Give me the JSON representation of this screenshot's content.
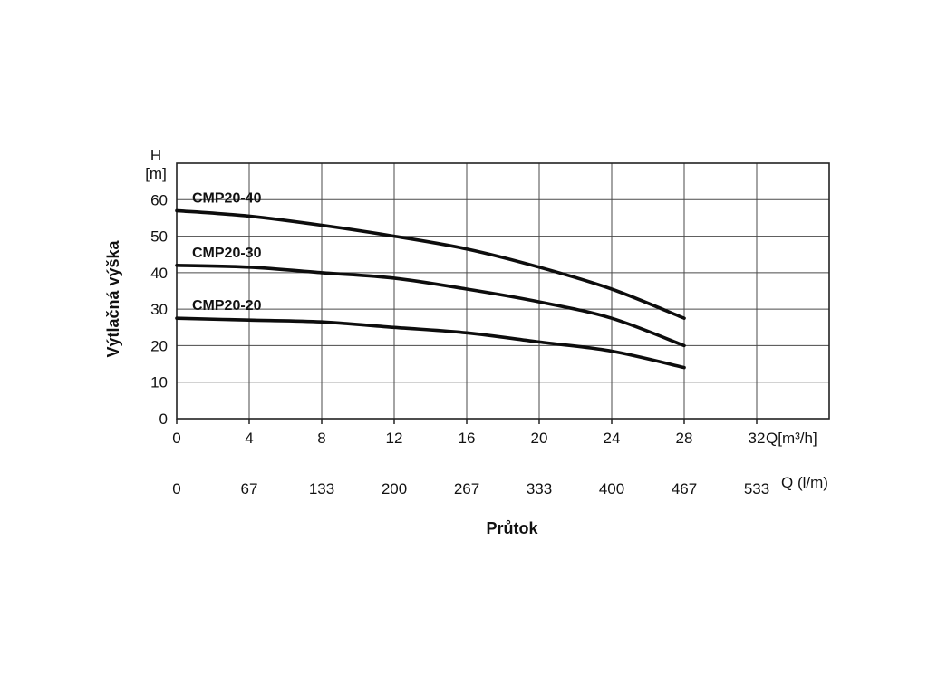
{
  "chart_data": {
    "type": "line",
    "xlabel": "Průtok",
    "ylabel": "Výtlačná výška",
    "grid": true,
    "legend_position": "inline",
    "y_axis": {
      "symbol": "H",
      "unit": "[m]",
      "ticks": [
        0,
        10,
        20,
        30,
        40,
        50,
        60
      ],
      "min": 0,
      "max": 70
    },
    "x_axis": {
      "unit": "Q[m³/h]",
      "ticks": [
        0,
        4,
        8,
        12,
        16,
        20,
        24,
        28,
        32
      ],
      "min": 0,
      "max": 36
    },
    "x_axis2": {
      "unit": "Q (l/m)",
      "ticks": [
        0,
        67,
        133,
        200,
        267,
        333,
        400,
        467,
        533
      ]
    },
    "series": [
      {
        "name": "CMP20-40",
        "points": [
          [
            0,
            57
          ],
          [
            4,
            55.5
          ],
          [
            8,
            53
          ],
          [
            12,
            50
          ],
          [
            16,
            46.5
          ],
          [
            20,
            41.5
          ],
          [
            24,
            35.5
          ],
          [
            28,
            27.5
          ]
        ]
      },
      {
        "name": "CMP20-30",
        "points": [
          [
            0,
            42
          ],
          [
            4,
            41.5
          ],
          [
            8,
            40
          ],
          [
            12,
            38.5
          ],
          [
            16,
            35.5
          ],
          [
            20,
            32
          ],
          [
            24,
            27.5
          ],
          [
            28,
            20
          ]
        ]
      },
      {
        "name": "CMP20-20",
        "points": [
          [
            0,
            27.5
          ],
          [
            4,
            27
          ],
          [
            8,
            26.5
          ],
          [
            12,
            25
          ],
          [
            16,
            23.5
          ],
          [
            20,
            21
          ],
          [
            24,
            18.5
          ],
          [
            28,
            14
          ]
        ]
      }
    ]
  }
}
